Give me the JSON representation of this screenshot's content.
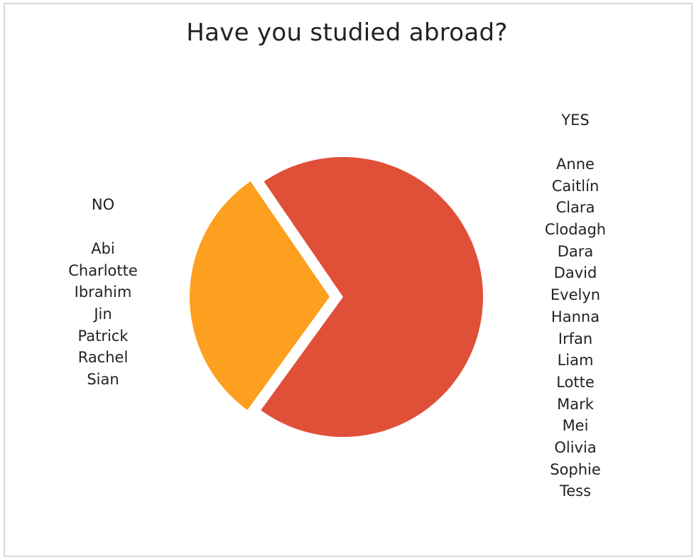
{
  "chart_data": {
    "type": "pie",
    "title": "Have you studied abroad?",
    "slices": [
      {
        "label": "NO",
        "value": 7,
        "color": "#fd9f1f",
        "exploded": true
      },
      {
        "label": "YES",
        "value": 16,
        "color": "#e05039",
        "exploded": false
      }
    ],
    "annotations": {
      "no": {
        "heading": "NO",
        "names": [
          "Abi",
          "Charlotte",
          "Ibrahim",
          "Jin",
          "Patrick",
          "Rachel",
          "Sian"
        ]
      },
      "yes": {
        "heading": "YES",
        "names": [
          "Anne",
          "Caitlín",
          "Clara",
          "Clodagh",
          "Dara",
          "David",
          "Evelyn",
          "Hanna",
          "Irfan",
          "Liam",
          "Lotte",
          "Mark",
          "Mei",
          "Olivia",
          "Sophie",
          "Tess"
        ]
      }
    },
    "legend": "none"
  }
}
